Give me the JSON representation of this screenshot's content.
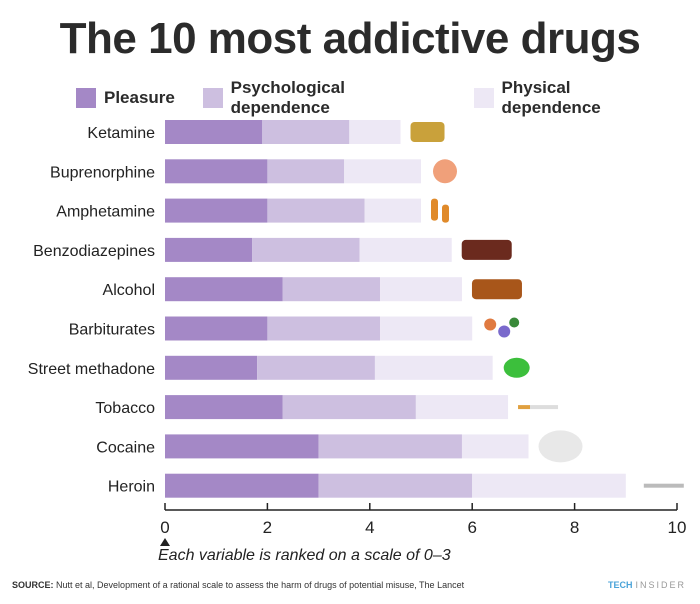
{
  "chart_data": {
    "type": "bar",
    "stacked": true,
    "orientation": "horizontal",
    "title": "The 10 most addictive drugs",
    "categories": [
      "Ketamine",
      "Buprenorphine",
      "Amphetamine",
      "Benzodiazepines",
      "Alcohol",
      "Barbiturates",
      "Street methadone",
      "Tobacco",
      "Cocaine",
      "Heroin"
    ],
    "series": [
      {
        "name": "Pleasure",
        "color": "#a488c6",
        "values": [
          1.9,
          2.0,
          2.0,
          1.7,
          2.3,
          2.0,
          1.8,
          2.3,
          3.0,
          3.0
        ]
      },
      {
        "name": "Psychological dependence",
        "color": "#cdbfe0",
        "values": [
          1.7,
          1.5,
          1.9,
          2.1,
          1.9,
          2.2,
          2.3,
          2.6,
          2.8,
          3.0
        ]
      },
      {
        "name": "Physical dependence",
        "color": "#ede8f5",
        "values": [
          1.0,
          1.5,
          1.1,
          1.8,
          1.6,
          1.8,
          2.3,
          1.8,
          1.3,
          3.0
        ]
      }
    ],
    "xlim": [
      0,
      10
    ],
    "xticks": [
      "0",
      "2",
      "4",
      "6",
      "8",
      "10"
    ],
    "legend": "top",
    "note": "Each variable is ranked on a scale of 0–3"
  },
  "source_label": "SOURCE:",
  "source_text": "Nutt et al, Development of a rational scale to assess the harm of drugs of potential misuse, The Lancet",
  "brand_a": "TECH",
  "brand_b": "INSIDER"
}
